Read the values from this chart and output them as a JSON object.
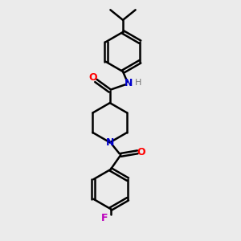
{
  "background_color": "#ebebeb",
  "bond_color": "#000000",
  "N_color": "#0000cc",
  "O_color": "#ff0000",
  "F_color": "#bb00bb",
  "H_color": "#777777",
  "line_width": 1.8,
  "figsize": [
    3.0,
    3.0
  ],
  "dpi": 100,
  "xlim": [
    0,
    10
  ],
  "ylim": [
    0,
    10
  ]
}
